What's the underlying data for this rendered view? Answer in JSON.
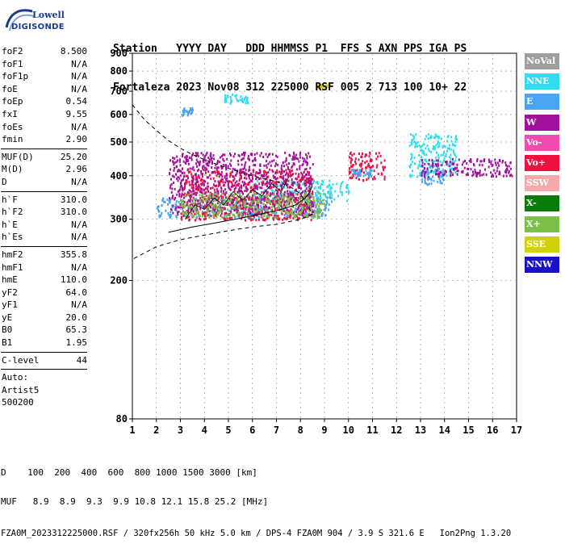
{
  "logo": {
    "top": "Lowell",
    "bottom": "DIGISONDE"
  },
  "header": {
    "line1": "Station   YYYY DAY   DDD HHMMSS P1  FFS S AXN PPS IGA PS",
    "line2": "Fortaleza 2023 Nov08 312 225000 RSF 005 2 713 100 10+ 22"
  },
  "params": {
    "group1": [
      {
        "k": "foF2",
        "v": "8.500"
      },
      {
        "k": "foF1",
        "v": "N/A"
      },
      {
        "k": "foF1p",
        "v": "N/A"
      },
      {
        "k": "foE",
        "v": "N/A"
      },
      {
        "k": "foEp",
        "v": "0.54"
      },
      {
        "k": "fxI",
        "v": "9.55"
      },
      {
        "k": "foEs",
        "v": "N/A"
      },
      {
        "k": "fmin",
        "v": "2.90"
      }
    ],
    "group2": [
      {
        "k": "MUF(D)",
        "v": "25.20"
      },
      {
        "k": "M(D)",
        "v": "2.96"
      },
      {
        "k": "D",
        "v": "N/A"
      }
    ],
    "group3": [
      {
        "k": "h`F",
        "v": "310.0"
      },
      {
        "k": "h`F2",
        "v": "310.0"
      },
      {
        "k": "h`E",
        "v": "N/A"
      },
      {
        "k": "h`Es",
        "v": "N/A"
      }
    ],
    "group4": [
      {
        "k": "hmF2",
        "v": "355.8"
      },
      {
        "k": "hmF1",
        "v": "N/A"
      },
      {
        "k": "hmE",
        "v": "110.0"
      },
      {
        "k": "yF2",
        "v": "64.0"
      },
      {
        "k": "yF1",
        "v": "N/A"
      },
      {
        "k": "yE",
        "v": "20.0"
      },
      {
        "k": "B0",
        "v": "65.3"
      },
      {
        "k": "B1",
        "v": "1.95"
      }
    ],
    "group5": [
      {
        "k": "C-level",
        "v": "44"
      }
    ],
    "auto": [
      "Auto:",
      "Artist5",
      "500200"
    ]
  },
  "legend": [
    {
      "label": "NoVal",
      "color": "#9e9e9e"
    },
    {
      "label": "NNE",
      "color": "#2fdcf0"
    },
    {
      "label": "E",
      "color": "#4aa4f2"
    },
    {
      "label": "W",
      "color": "#a0109a"
    },
    {
      "label": "Vo-",
      "color": "#f04cae"
    },
    {
      "label": "Vo+",
      "color": "#ee1040"
    },
    {
      "label": "SSW",
      "color": "#f4aaaa"
    },
    {
      "label": "X-",
      "color": "#0a7a0a"
    },
    {
      "label": "X+",
      "color": "#7cc04a"
    },
    {
      "label": "SSE",
      "color": "#d2d20a"
    },
    {
      "label": "NNW",
      "color": "#1a10c8"
    }
  ],
  "footer": {
    "d_line": "D    100  200  400  600  800 1000 1500 3000 [km]",
    "muf_line": "MUF   8.9  8.9  9.3  9.9 10.8 12.1 15.8 25.2 [MHz]",
    "source": "FZA0M_2023312225000.RSF / 320fx256h 50 kHz 5.0 km / DPS-4 FZA0M 904 / 3.9 S 321.6 E   Ion2Png 1.3.20"
  },
  "chart_data": {
    "type": "scatter",
    "xlim": [
      1,
      17
    ],
    "ylim": [
      80,
      900
    ],
    "y_scale": "log",
    "x_ticks": [
      1,
      2,
      3,
      4,
      5,
      6,
      7,
      8,
      9,
      10,
      11,
      12,
      13,
      14,
      15,
      16,
      17
    ],
    "y_ticks": [
      80,
      200,
      300,
      400,
      500,
      600,
      700,
      800,
      900
    ],
    "grid": "dashed",
    "legend_position": "right",
    "clusters": [
      {
        "name": "NNE",
        "x": [
          6.0,
          10.0
        ],
        "y": [
          340,
          390
        ],
        "center": [
          8.0,
          365
        ]
      },
      {
        "name": "E",
        "x": [
          2.0,
          9.3
        ],
        "y": [
          305,
          350
        ],
        "center": [
          5.5,
          328
        ]
      },
      {
        "name": "Vo+",
        "x": [
          3.0,
          8.5
        ],
        "y": [
          300,
          420
        ],
        "center": [
          5.5,
          330
        ]
      },
      {
        "name": "W",
        "x": [
          2.5,
          8.5
        ],
        "y": [
          310,
          470
        ],
        "center": [
          6.0,
          360
        ]
      },
      {
        "name": "X+",
        "x": [
          3.0,
          9.0
        ],
        "y": [
          305,
          360
        ],
        "center": [
          6.0,
          330
        ]
      },
      {
        "name": "NNE",
        "x": [
          12.5,
          14.5
        ],
        "y": [
          400,
          530
        ],
        "center": [
          13.5,
          470
        ]
      },
      {
        "name": "E",
        "x": [
          13.0,
          14.0
        ],
        "y": [
          380,
          430
        ],
        "center": [
          13.5,
          405
        ]
      },
      {
        "name": "W",
        "x": [
          13.0,
          16.8
        ],
        "y": [
          400,
          450
        ],
        "center": [
          15.0,
          420
        ]
      },
      {
        "name": "Vo+",
        "x": [
          10.0,
          11.5
        ],
        "y": [
          390,
          470
        ],
        "center": [
          10.8,
          430
        ]
      },
      {
        "name": "E",
        "x": [
          10.0,
          11.0
        ],
        "y": [
          400,
          420
        ],
        "center": [
          10.5,
          410
        ]
      },
      {
        "name": "E",
        "x": [
          3.0,
          3.5
        ],
        "y": [
          600,
          630
        ],
        "center": [
          3.2,
          612
        ]
      },
      {
        "name": "SSE",
        "x": [
          8.5,
          9.2
        ],
        "y": [
          720,
          740
        ],
        "center": [
          8.8,
          730
        ]
      },
      {
        "name": "NNE",
        "x": [
          4.8,
          5.8
        ],
        "y": [
          650,
          690
        ],
        "center": [
          5.2,
          660
        ]
      }
    ],
    "profile_curve": {
      "x": [
        2.5,
        3.5,
        4.5,
        5.5,
        6.5,
        7.2,
        7.8,
        8.2,
        8.4,
        8.5
      ],
      "y": [
        275,
        285,
        293,
        302,
        312,
        320,
        330,
        345,
        360,
        380
      ]
    },
    "dashed_profile": {
      "x": [
        1.0,
        1.5,
        2.0,
        2.5,
        3.0,
        3.5,
        4.0,
        4.5,
        5.0,
        5.5,
        6.0,
        6.5,
        7.0,
        7.5,
        8.0,
        8.5,
        8.0,
        7.0,
        6.0,
        5.0,
        4.0,
        3.0,
        2.0,
        1.0
      ],
      "y": [
        640,
        580,
        540,
        505,
        480,
        460,
        445,
        432,
        420,
        410,
        400,
        392,
        385,
        375,
        355,
        310,
        300,
        290,
        285,
        278,
        270,
        262,
        250,
        230
      ]
    },
    "ordinary_trace": {
      "x": [
        3.2,
        3.6,
        4.0,
        4.4,
        4.8,
        5.2,
        5.6,
        6.0,
        6.4,
        6.8,
        7.2,
        7.5
      ],
      "y": [
        300,
        330,
        320,
        345,
        330,
        360,
        340,
        365,
        350,
        380,
        360,
        395
      ]
    }
  }
}
